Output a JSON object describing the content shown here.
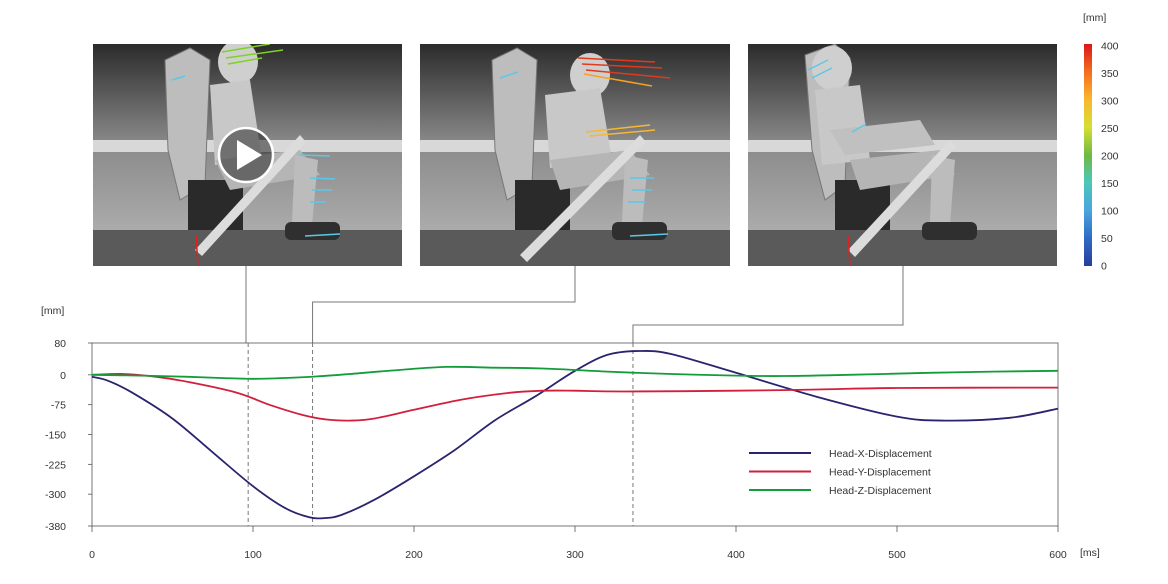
{
  "chart_data": {
    "type": "line",
    "xlabel": "[ms]",
    "ylabel": "[mm]",
    "xlim": [
      0,
      600
    ],
    "ylim": [
      -380,
      80
    ],
    "x_ticks": [
      0,
      100,
      200,
      300,
      400,
      500,
      600
    ],
    "x_tick_labels": [
      "0",
      "100",
      "200",
      "300",
      "400",
      "500",
      "600"
    ],
    "y_ticks": [
      80,
      0,
      -75,
      -150,
      -225,
      -300,
      -380
    ],
    "y_tick_labels": [
      "80",
      "0",
      "-75",
      "-150",
      "-225",
      "-300",
      "-380"
    ],
    "legend_position": "lower-right",
    "grid": "vertical tick marks only",
    "series": [
      {
        "name": "Head-X-Displacement",
        "color": "#2a246e",
        "points": [
          [
            0,
            -5
          ],
          [
            10,
            -15
          ],
          [
            25,
            -45
          ],
          [
            50,
            -110
          ],
          [
            75,
            -195
          ],
          [
            100,
            -280
          ],
          [
            120,
            -335
          ],
          [
            135,
            -358
          ],
          [
            145,
            -360
          ],
          [
            155,
            -352
          ],
          [
            175,
            -315
          ],
          [
            200,
            -255
          ],
          [
            225,
            -190
          ],
          [
            250,
            -115
          ],
          [
            275,
            -55
          ],
          [
            300,
            10
          ],
          [
            320,
            50
          ],
          [
            340,
            60
          ],
          [
            360,
            52
          ],
          [
            400,
            5
          ],
          [
            450,
            -55
          ],
          [
            500,
            -105
          ],
          [
            530,
            -115
          ],
          [
            570,
            -108
          ],
          [
            600,
            -85
          ]
        ]
      },
      {
        "name": "Head-Y-Displacement",
        "color": "#d11f3c",
        "points": [
          [
            0,
            0
          ],
          [
            20,
            2
          ],
          [
            40,
            -5
          ],
          [
            60,
            -18
          ],
          [
            90,
            -45
          ],
          [
            110,
            -75
          ],
          [
            130,
            -100
          ],
          [
            145,
            -112
          ],
          [
            160,
            -115
          ],
          [
            175,
            -110
          ],
          [
            200,
            -88
          ],
          [
            230,
            -62
          ],
          [
            260,
            -45
          ],
          [
            280,
            -40
          ],
          [
            300,
            -40
          ],
          [
            330,
            -42
          ],
          [
            400,
            -40
          ],
          [
            450,
            -37
          ],
          [
            500,
            -33
          ],
          [
            600,
            -32
          ]
        ]
      },
      {
        "name": "Head-Z-Displacement",
        "color": "#139c3a",
        "points": [
          [
            0,
            0
          ],
          [
            30,
            -2
          ],
          [
            60,
            -5
          ],
          [
            80,
            -8
          ],
          [
            100,
            -10
          ],
          [
            120,
            -8
          ],
          [
            140,
            -4
          ],
          [
            160,
            2
          ],
          [
            190,
            12
          ],
          [
            220,
            20
          ],
          [
            250,
            18
          ],
          [
            280,
            16
          ],
          [
            320,
            8
          ],
          [
            360,
            2
          ],
          [
            400,
            -2
          ],
          [
            430,
            -3
          ],
          [
            470,
            0
          ],
          [
            520,
            5
          ],
          [
            560,
            8
          ],
          [
            600,
            10
          ]
        ]
      }
    ],
    "markers": [
      {
        "x": 97,
        "frame": 0
      },
      {
        "x": 137,
        "frame": 1
      },
      {
        "x": 336,
        "frame": 2
      }
    ],
    "colorbar": {
      "unit": "[mm]",
      "ticks": [
        "400",
        "350",
        "300",
        "250",
        "200",
        "150",
        "100",
        "50",
        "0"
      ],
      "stops": [
        "#d7191c",
        "#f46d1e",
        "#f7b731",
        "#d5e032",
        "#6fb944",
        "#4cc7b8",
        "#4aa5dd",
        "#2f6bc4",
        "#283f9a"
      ]
    }
  },
  "video": {
    "frames": [
      "frame-1",
      "frame-2",
      "frame-3"
    ],
    "play_icon": "play-icon"
  }
}
